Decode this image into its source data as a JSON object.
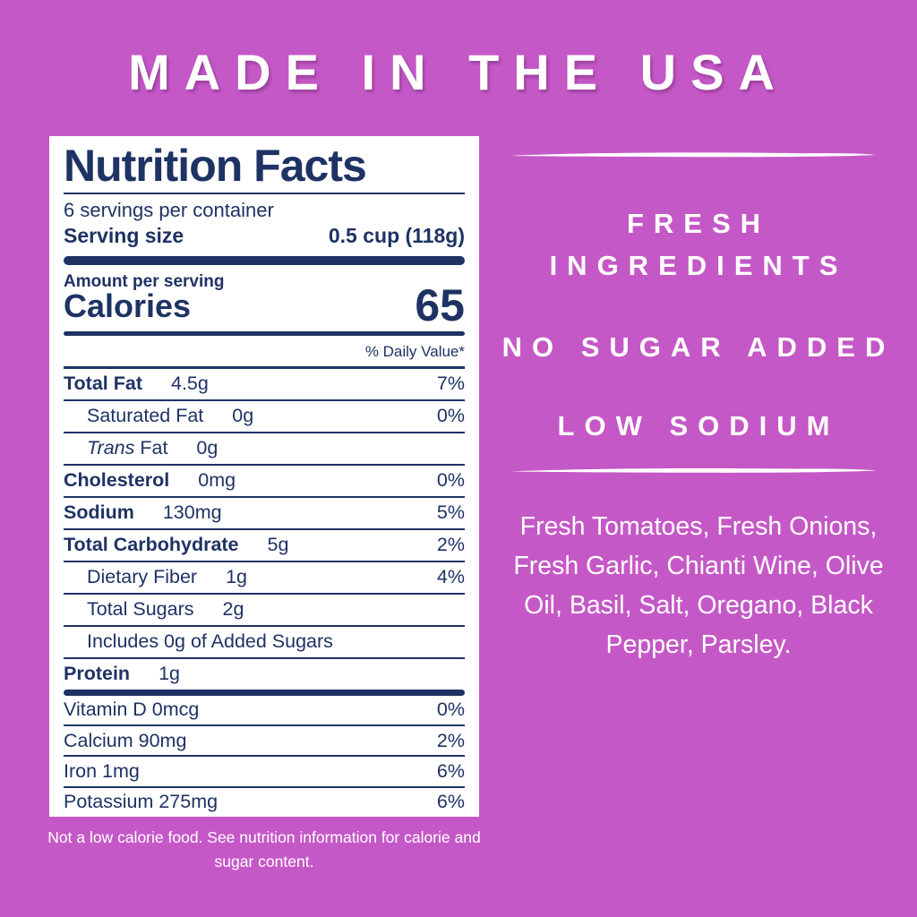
{
  "colors": {
    "background": "#c558c7",
    "navy": "#1e3264",
    "white": "#ffffff"
  },
  "header": {
    "title": "MADE IN THE USA"
  },
  "nutrition_label": {
    "title": "Nutrition Facts",
    "servings_per_container": "6 servings per container",
    "serving_size_label": "Serving size",
    "serving_size_value": "0.5 cup (118g)",
    "amount_per_serving": "Amount per serving",
    "calories_label": "Calories",
    "calories_value": "65",
    "daily_value_header": "% Daily Value*",
    "rows": [
      {
        "label": "Total Fat",
        "amount": "4.5g",
        "dv": "7%",
        "bold": true,
        "indent": false
      },
      {
        "label": "Saturated Fat",
        "amount": "0g",
        "dv": "0%",
        "bold": false,
        "indent": true
      },
      {
        "italic": "Trans",
        "label": " Fat",
        "amount": "0g",
        "dv": "",
        "bold": false,
        "indent": true
      },
      {
        "label": "Cholesterol",
        "amount": "0mg",
        "dv": "0%",
        "bold": true,
        "indent": false
      },
      {
        "label": "Sodium",
        "amount": "130mg",
        "dv": "5%",
        "bold": true,
        "indent": false
      },
      {
        "label": "Total Carbohydrate",
        "amount": "5g",
        "dv": "2%",
        "bold": true,
        "indent": false
      },
      {
        "label": "Dietary Fiber",
        "amount": "1g",
        "dv": "4%",
        "bold": false,
        "indent": true
      },
      {
        "label": "Total Sugars",
        "amount": "2g",
        "dv": "",
        "bold": false,
        "indent": true
      },
      {
        "label": "Includes 0g of Added Sugars",
        "amount": "",
        "dv": "",
        "bold": false,
        "indent": true
      },
      {
        "label": "Protein",
        "amount": "1g",
        "dv": "",
        "bold": true,
        "indent": false
      }
    ],
    "micronutrients": [
      {
        "label": "Vitamin D 0mcg",
        "dv": "0%"
      },
      {
        "label": "Calcium 90mg",
        "dv": "2%"
      },
      {
        "label": "Iron 1mg",
        "dv": "6%"
      },
      {
        "label": "Potassium 275mg",
        "dv": "6%"
      }
    ]
  },
  "footnote": "Not a low calorie food. See nutrition information for calorie and sugar content.",
  "right_panel": {
    "claims": [
      "FRESH INGREDIENTS",
      "NO SUGAR ADDED",
      "LOW SODIUM"
    ],
    "ingredients": "Fresh Tomatoes, Fresh Onions, Fresh Garlic, Chianti Wine, Olive Oil, Basil, Salt, Oregano, Black Pepper, Parsley."
  }
}
